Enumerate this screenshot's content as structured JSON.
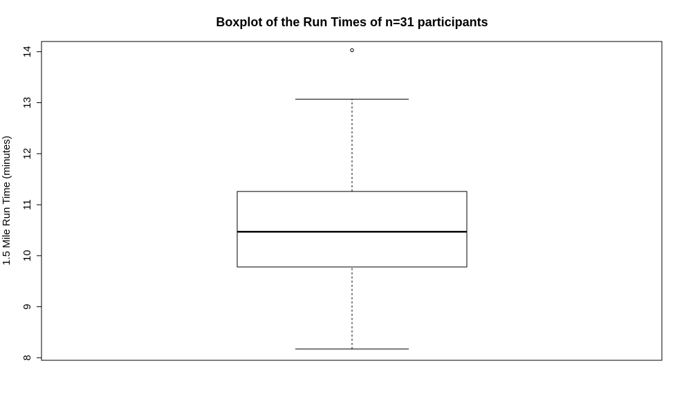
{
  "chart_data": {
    "type": "boxplot",
    "title": "Boxplot of the Run Times of n=31 participants",
    "xlabel": "",
    "ylabel": "1.5 Mile Run Time (minutes)",
    "ylim": [
      7.95,
      14.2
    ],
    "yticks": [
      8,
      9,
      10,
      11,
      12,
      13,
      14
    ],
    "ytick_labels": [
      "8",
      "9",
      "10",
      "11",
      "12",
      "13",
      "14"
    ],
    "grid": false,
    "legend": "none",
    "box": {
      "whisker_low": 8.17,
      "q1": 9.78,
      "median": 10.47,
      "q3": 11.26,
      "whisker_high": 13.07
    },
    "outliers": [
      14.03
    ],
    "colors": {
      "stroke": "#000000",
      "box_fill": "#ffffff",
      "background": "#ffffff"
    }
  }
}
